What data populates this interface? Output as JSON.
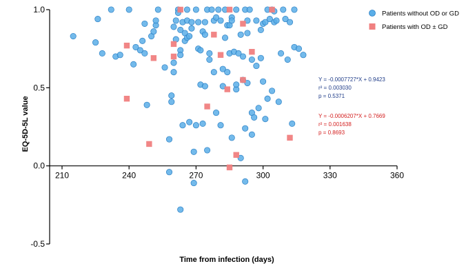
{
  "chart_data": {
    "type": "scatter",
    "title": "",
    "xlabel": "Time from infection (days)",
    "ylabel": "EQ-5D-5L value",
    "xlim": [
      190,
      360
    ],
    "ylim": [
      -0.5,
      1.0
    ],
    "x_ticks": [
      210,
      240,
      270,
      300,
      330,
      360
    ],
    "y_ticks": [
      -0.5,
      0.0,
      0.5,
      1.0
    ],
    "x_tick_labels": [
      "210",
      "240",
      "270",
      "300",
      "330",
      "360"
    ],
    "y_tick_labels": [
      "-0.5",
      "0.0",
      "0.5",
      "1.0"
    ],
    "legend_position": "top-right",
    "series": [
      {
        "name": "Patients without OD or GD",
        "color": "#5aaee8",
        "edge_color": "#2a7fc4",
        "marker": "circle",
        "points": [
          [
            215,
            0.83
          ],
          [
            225,
            0.79
          ],
          [
            226,
            0.94
          ],
          [
            228,
            0.72
          ],
          [
            232,
            1.0
          ],
          [
            234,
            0.7
          ],
          [
            236,
            0.71
          ],
          [
            240,
            1.0
          ],
          [
            242,
            0.65
          ],
          [
            243,
            0.76
          ],
          [
            245,
            0.74
          ],
          [
            246,
            0.8
          ],
          [
            247,
            0.72
          ],
          [
            247,
            0.91
          ],
          [
            248,
            0.39
          ],
          [
            250,
            0.83
          ],
          [
            251,
            0.86
          ],
          [
            252,
            0.9
          ],
          [
            252,
            0.93
          ],
          [
            253,
            1.0
          ],
          [
            256,
            0.63
          ],
          [
            258,
            0.17
          ],
          [
            258,
            -0.04
          ],
          [
            259,
            0.41
          ],
          [
            259,
            0.45
          ],
          [
            260,
            0.6
          ],
          [
            260,
            0.66
          ],
          [
            260,
            0.89
          ],
          [
            261,
            0.93
          ],
          [
            261,
            0.81
          ],
          [
            262,
            1.0
          ],
          [
            262,
            0.98
          ],
          [
            263,
            0.87
          ],
          [
            263,
            0.74
          ],
          [
            263,
            0.71
          ],
          [
            263,
            -0.28
          ],
          [
            264,
            0.26
          ],
          [
            264,
            0.92
          ],
          [
            265,
            0.85
          ],
          [
            265,
            0.8
          ],
          [
            266,
            1.0
          ],
          [
            266,
            0.82
          ],
          [
            266,
            0.93
          ],
          [
            267,
            0.83
          ],
          [
            267,
            0.28
          ],
          [
            268,
            0.88
          ],
          [
            268,
            0.92
          ],
          [
            269,
            0.09
          ],
          [
            269,
            -0.11
          ],
          [
            270,
            0.26
          ],
          [
            270,
            1.0
          ],
          [
            271,
            0.92
          ],
          [
            271,
            0.75
          ],
          [
            272,
            0.52
          ],
          [
            272,
            0.74
          ],
          [
            273,
            0.86
          ],
          [
            273,
            0.27
          ],
          [
            274,
            0.84
          ],
          [
            274,
            0.92
          ],
          [
            274,
            0.51
          ],
          [
            275,
            0.1
          ],
          [
            275,
            1.0
          ],
          [
            276,
            0.72
          ],
          [
            276,
            0.68
          ],
          [
            277,
            1.0
          ],
          [
            278,
            0.6
          ],
          [
            278,
            0.93
          ],
          [
            279,
            0.95
          ],
          [
            279,
            0.34
          ],
          [
            280,
            1.0
          ],
          [
            281,
            0.93
          ],
          [
            281,
            0.26
          ],
          [
            282,
            0.62
          ],
          [
            282,
            0.51
          ],
          [
            283,
            1.0
          ],
          [
            283,
            0.82
          ],
          [
            284,
            0.9
          ],
          [
            284,
            0.6
          ],
          [
            285,
            0.72
          ],
          [
            285,
            0.9
          ],
          [
            286,
            0.95
          ],
          [
            286,
            0.93
          ],
          [
            286,
            0.18
          ],
          [
            287,
            0.73
          ],
          [
            288,
            1.0
          ],
          [
            288,
            0.49
          ],
          [
            288,
            0.52
          ],
          [
            289,
            0.72
          ],
          [
            290,
            0.84
          ],
          [
            290,
            0.05
          ],
          [
            291,
            0.7
          ],
          [
            291,
            0.55
          ],
          [
            292,
            1.0
          ],
          [
            292,
            0.24
          ],
          [
            292,
            -0.1
          ],
          [
            293,
            0.93
          ],
          [
            293,
            0.85
          ],
          [
            293,
            0.53
          ],
          [
            294,
            1.0
          ],
          [
            295,
            0.68
          ],
          [
            295,
            0.34
          ],
          [
            295,
            0.2
          ],
          [
            296,
            0.31
          ],
          [
            297,
            0.64
          ],
          [
            297,
            0.93
          ],
          [
            298,
            0.37
          ],
          [
            299,
            0.87
          ],
          [
            299,
            0.69
          ],
          [
            300,
            0.91
          ],
          [
            300,
            0.54
          ],
          [
            301,
            0.92
          ],
          [
            301,
            0.3
          ],
          [
            302,
            1.0
          ],
          [
            302,
            0.43
          ],
          [
            303,
            0.94
          ],
          [
            304,
            1.0
          ],
          [
            304,
            0.48
          ],
          [
            305,
            0.92
          ],
          [
            305,
            0.99
          ],
          [
            306,
            0.93
          ],
          [
            307,
            0.41
          ],
          [
            308,
            0.72
          ],
          [
            309,
            1.0
          ],
          [
            310,
            0.94
          ],
          [
            311,
            0.68
          ],
          [
            312,
            0.92
          ],
          [
            313,
            0.27
          ],
          [
            314,
            1.0
          ],
          [
            314,
            0.76
          ],
          [
            316,
            0.75
          ],
          [
            318,
            0.71
          ]
        ]
      },
      {
        "name": "Patients with OD ± GD",
        "color": "#f08080",
        "edge_color": "#e06868",
        "marker": "square",
        "points": [
          [
            239,
            0.77
          ],
          [
            239,
            0.43
          ],
          [
            249,
            0.14
          ],
          [
            251,
            0.69
          ],
          [
            260,
            0.7
          ],
          [
            260,
            0.78
          ],
          [
            263,
            1.0
          ],
          [
            275,
            0.38
          ],
          [
            278,
            0.84
          ],
          [
            281,
            0.71
          ],
          [
            284,
            0.49
          ],
          [
            285,
            1.0
          ],
          [
            285,
            -0.01
          ],
          [
            288,
            0.07
          ],
          [
            291,
            0.91
          ],
          [
            291,
            0.55
          ],
          [
            295,
            0.73
          ],
          [
            304,
            1.0
          ],
          [
            312,
            0.18
          ]
        ]
      }
    ],
    "annotations": [
      {
        "series": "Patients without OD or GD",
        "color": "#1f3c88",
        "lines": [
          "Y = -0.0007727*X + 0.9423",
          "r² = 0.003030",
          "p = 0.5371"
        ]
      },
      {
        "series": "Patients with OD ± GD",
        "color": "#d42020",
        "lines": [
          "Y = -0.0006207*X + 0.7669",
          "r² = 0.001638",
          "p = 0.8693"
        ]
      }
    ]
  }
}
